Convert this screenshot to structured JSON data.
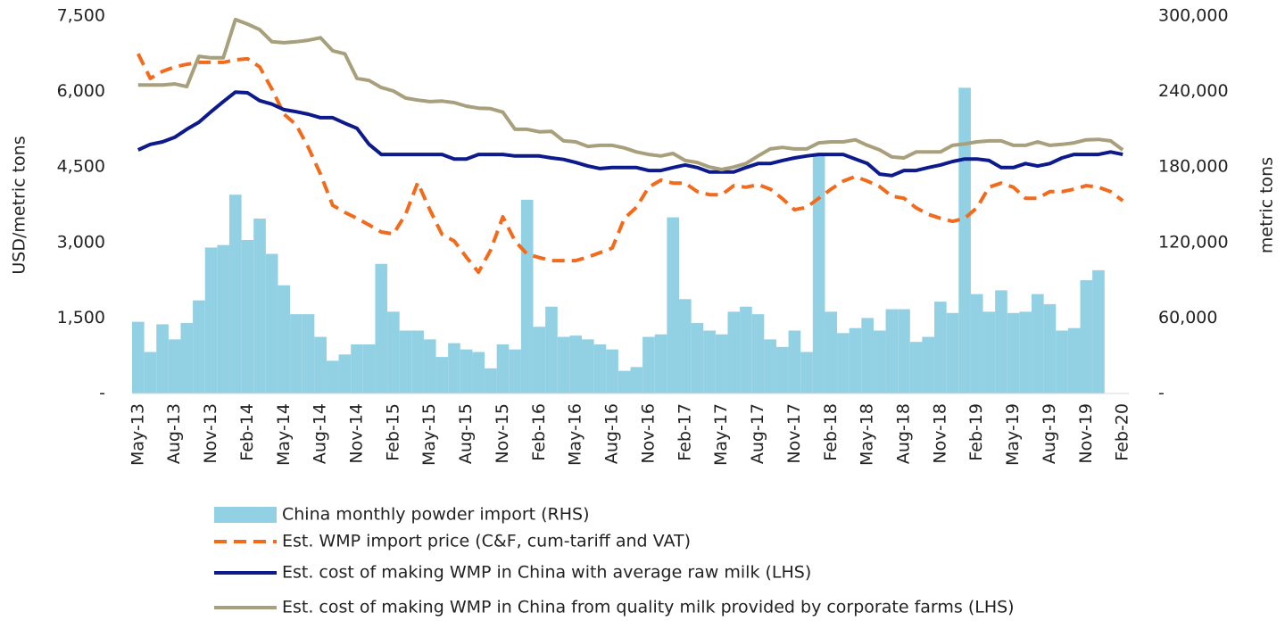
{
  "chart_data": {
    "type": "combo",
    "y_label": "USD/metric tons",
    "y2_label": "metric tons",
    "categories": [
      "May-13",
      null,
      null,
      "Aug-13",
      null,
      null,
      "Nov-13",
      null,
      null,
      "Feb-14",
      null,
      null,
      "May-14",
      null,
      null,
      "Aug-14",
      null,
      null,
      "Nov-14",
      null,
      null,
      "Feb-15",
      null,
      null,
      "May-15",
      null,
      null,
      "Aug-15",
      null,
      null,
      "Nov-15",
      null,
      null,
      "Feb-16",
      null,
      null,
      "May-16",
      null,
      null,
      "Aug-16",
      null,
      null,
      "Nov-16",
      null,
      null,
      "Feb-17",
      null,
      null,
      "May-17",
      null,
      null,
      "Aug-17",
      null,
      null,
      "Nov-17",
      null,
      null,
      "Feb-18",
      null,
      null,
      "May-18",
      null,
      null,
      "Aug-18",
      null,
      null,
      "Nov-18",
      null,
      null,
      "Feb-19",
      null,
      null,
      "May-19",
      null,
      null,
      "Aug-19",
      null,
      null,
      "Nov-19",
      null,
      null,
      "Feb-20"
    ],
    "ylim": [
      0,
      7500
    ],
    "yticks": [
      {
        "value": 0,
        "label": "-"
      },
      {
        "value": 1500,
        "label": "1,500"
      },
      {
        "value": 3000,
        "label": "3,000"
      },
      {
        "value": 4500,
        "label": "4,500"
      },
      {
        "value": 6000,
        "label": "6,000"
      },
      {
        "value": 7500,
        "label": "7,500"
      }
    ],
    "y2lim": [
      0,
      300000
    ],
    "y2ticks": [
      {
        "value": 0,
        "label": "-"
      },
      {
        "value": 60000,
        "label": "60,000"
      },
      {
        "value": 120000,
        "label": "120,000"
      },
      {
        "value": 180000,
        "label": "180,000"
      },
      {
        "value": 240000,
        "label": "240,000"
      },
      {
        "value": 300000,
        "label": "300,000"
      }
    ],
    "series": [
      {
        "name": "China monthly powder import (RHS)",
        "type": "bar",
        "axis": "y2",
        "color": "#92d0e3",
        "values": [
          57000,
          33000,
          55000,
          43000,
          56000,
          74000,
          116000,
          118000,
          158000,
          122000,
          139000,
          111000,
          86000,
          63000,
          63000,
          45000,
          26000,
          31000,
          39000,
          39000,
          103000,
          65000,
          50000,
          50000,
          43000,
          29000,
          40000,
          35000,
          33000,
          20000,
          39000,
          35000,
          154000,
          53000,
          69000,
          45000,
          46000,
          43000,
          39000,
          35000,
          18000,
          21000,
          45000,
          47000,
          140000,
          75000,
          56000,
          50000,
          47000,
          65000,
          69000,
          63000,
          43000,
          37000,
          50000,
          33000,
          189000,
          65000,
          48000,
          52000,
          60000,
          50000,
          67000,
          67000,
          41000,
          45000,
          73000,
          64000,
          243000,
          79000,
          65000,
          82000,
          64000,
          65000,
          79000,
          71000,
          50000,
          52000,
          90000,
          98000,
          null,
          null
        ]
      },
      {
        "name": "Est. WMP import price (C&F, cum-tariff and VAT)",
        "type": "line",
        "dashed": true,
        "color": "#f26b1d",
        "values": [
          6750,
          6260,
          6400,
          6490,
          6540,
          6580,
          6580,
          6580,
          6630,
          6650,
          6490,
          6050,
          5550,
          5340,
          4890,
          4360,
          3740,
          3600,
          3480,
          3350,
          3210,
          3170,
          3560,
          4190,
          3650,
          3160,
          3030,
          2710,
          2410,
          2850,
          3510,
          3030,
          2770,
          2700,
          2640,
          2640,
          2640,
          2710,
          2800,
          2890,
          3480,
          3700,
          4100,
          4240,
          4180,
          4180,
          4010,
          3950,
          3950,
          4130,
          4100,
          4150,
          4060,
          3870,
          3650,
          3700,
          3880,
          4060,
          4220,
          4310,
          4220,
          4110,
          3920,
          3880,
          3690,
          3560,
          3480,
          3420,
          3480,
          3690,
          4100,
          4180,
          4100,
          3880,
          3880,
          4010,
          4010,
          4060,
          4130,
          4100,
          4010,
          3830
        ]
      },
      {
        "name": "Est. cost of making WMP in China with average raw milk (LHS)",
        "type": "line",
        "dashed": false,
        "color": "#0d1a8c",
        "values": [
          4840,
          4950,
          5000,
          5090,
          5250,
          5390,
          5600,
          5800,
          5990,
          5975,
          5820,
          5750,
          5640,
          5600,
          5550,
          5480,
          5480,
          5370,
          5270,
          4950,
          4750,
          4750,
          4750,
          4750,
          4750,
          4750,
          4660,
          4660,
          4750,
          4750,
          4750,
          4720,
          4720,
          4720,
          4680,
          4650,
          4590,
          4520,
          4470,
          4490,
          4490,
          4490,
          4430,
          4430,
          4490,
          4540,
          4490,
          4400,
          4400,
          4400,
          4490,
          4570,
          4570,
          4630,
          4680,
          4720,
          4750,
          4750,
          4750,
          4660,
          4570,
          4360,
          4330,
          4430,
          4430,
          4490,
          4540,
          4610,
          4660,
          4660,
          4630,
          4490,
          4490,
          4570,
          4520,
          4570,
          4680,
          4750,
          4750,
          4750,
          4800,
          4750
        ]
      },
      {
        "name": "Est. cost of making WMP in China from quality milk provided by corporate farms (LHS)",
        "type": "line",
        "dashed": false,
        "color": "#a89f7c",
        "values": [
          6130,
          6130,
          6130,
          6150,
          6100,
          6700,
          6670,
          6670,
          7430,
          7340,
          7230,
          6990,
          6970,
          6990,
          7020,
          7070,
          6810,
          6750,
          6260,
          6220,
          6080,
          6010,
          5870,
          5830,
          5800,
          5810,
          5780,
          5710,
          5670,
          5660,
          5590,
          5250,
          5250,
          5200,
          5210,
          5020,
          5000,
          4910,
          4930,
          4930,
          4880,
          4800,
          4750,
          4720,
          4770,
          4630,
          4590,
          4500,
          4450,
          4500,
          4570,
          4720,
          4860,
          4890,
          4860,
          4860,
          4980,
          5000,
          5000,
          5040,
          4930,
          4840,
          4700,
          4680,
          4800,
          4800,
          4800,
          4930,
          4960,
          5000,
          5020,
          5020,
          4930,
          4930,
          5000,
          4930,
          4950,
          4980,
          5040,
          5050,
          5020,
          4840
        ]
      }
    ]
  }
}
